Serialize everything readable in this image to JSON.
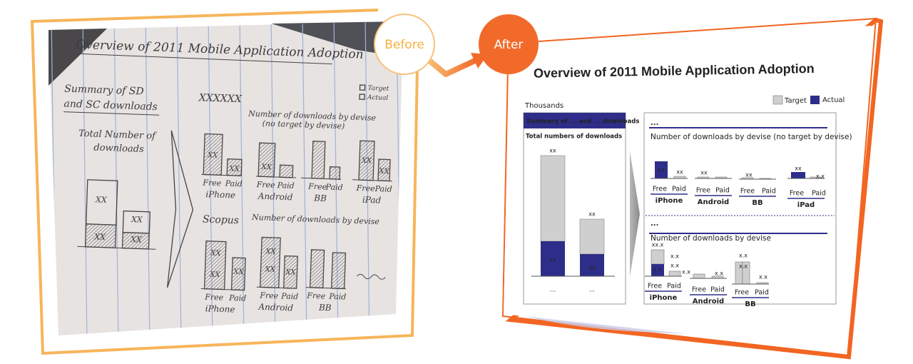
{
  "badges": {
    "before": "Before",
    "after": "After"
  },
  "sketch": {
    "title": "Overview of 2011 Mobile Application Adoption",
    "legend": [
      "Target",
      "Actual"
    ],
    "summary": [
      "Summary of SD",
      "and SC downloads"
    ],
    "subtitle": [
      "Total Number of",
      "downloads"
    ],
    "bar_labels": [
      "XX",
      "XX",
      "XX",
      "XX"
    ],
    "section1": {
      "header": "XXXXXX",
      "title": [
        "Number of downloads by devise",
        "(no target by devise)"
      ],
      "devices": [
        {
          "name": "iPhone",
          "free": "Free",
          "paid": "Paid",
          "labels": [
            "XX",
            "XX"
          ]
        },
        {
          "name": "Android",
          "free": "Free",
          "paid": "Paid",
          "labels": [
            "XX"
          ]
        },
        {
          "name": "BB",
          "free": "Free",
          "paid": "Paid"
        },
        {
          "name": "iPad",
          "free": "Free",
          "paid": "Paid",
          "labels": [
            "XX",
            "XX"
          ]
        }
      ]
    },
    "section2": {
      "header": "Scopus",
      "title": "Number of downloads by devise",
      "devices": [
        {
          "name": "iPhone",
          "free": "Free",
          "paid": "Paid",
          "labels": [
            "XX",
            "XX",
            "XX"
          ]
        },
        {
          "name": "Android",
          "free": "Free",
          "paid": "Paid",
          "labels": [
            "XX",
            "XX",
            "XX"
          ]
        },
        {
          "name": "BB",
          "free": "Free",
          "paid": "Paid"
        }
      ]
    }
  },
  "mockup": {
    "title": "Overview of 2011 Mobile Application Adoption",
    "unit": "Thousands",
    "legend": [
      "Target",
      "Actual"
    ],
    "summary": {
      "header": "Summary of ... and ... downloads",
      "subtitle": "Total numbers of downloads",
      "bar_labels": [
        "xx",
        "xx",
        "xx",
        "xx"
      ],
      "categories": [
        "...",
        "..."
      ]
    },
    "section1": {
      "header": "...",
      "title": "Number of downloads by devise (no target by devise)",
      "devices": [
        {
          "name": "iPhone",
          "free": "Free",
          "paid": "Paid",
          "labels": [
            "xx",
            "xx"
          ]
        },
        {
          "name": "Android",
          "free": "Free",
          "paid": "Paid",
          "labels": [
            "xx"
          ]
        },
        {
          "name": "BB",
          "free": "Free",
          "paid": "Paid",
          "labels": [
            "xx"
          ]
        },
        {
          "name": "iPad",
          "free": "Free",
          "paid": "Paid",
          "labels": [
            "xx",
            "x.x"
          ]
        }
      ]
    },
    "section2": {
      "header": "...",
      "title": "Number of downloads by devise",
      "devices": [
        {
          "name": "iPhone",
          "free": "Free",
          "paid": "Paid",
          "labels": [
            "xx.x",
            "x.x",
            "x.x",
            "x.x",
            "x.x"
          ]
        },
        {
          "name": "Android",
          "free": "Free",
          "paid": "Paid",
          "labels": [
            "x.x"
          ]
        },
        {
          "name": "BB",
          "free": "Free",
          "paid": "Paid",
          "labels": [
            "x.x",
            "x.x",
            "x.x"
          ]
        }
      ]
    }
  }
}
